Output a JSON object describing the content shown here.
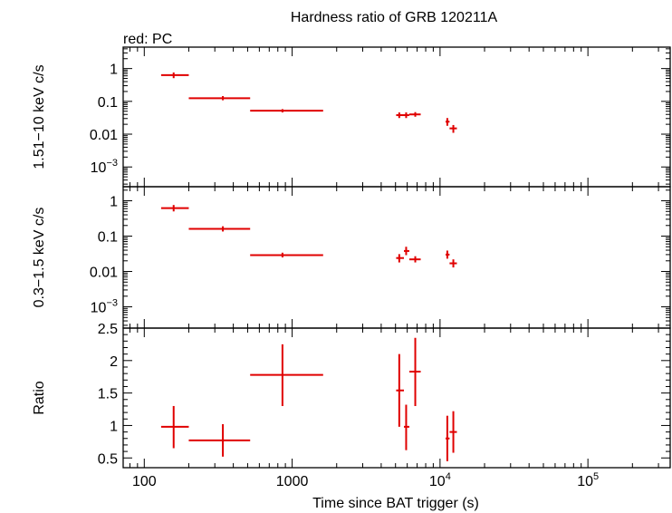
{
  "chart_data": {
    "type": "scatter",
    "title": "Hardness ratio of GRB 120211A",
    "subtitle": "red: PC",
    "xlabel": "Time since BAT trigger (s)",
    "xscale": "log",
    "xlim": [
      72,
      360000
    ],
    "x_ticks": [
      {
        "value": 100,
        "label": "100"
      },
      {
        "value": 1000,
        "label": "1000"
      },
      {
        "value": 10000,
        "label": "10",
        "exp": "4"
      },
      {
        "value": 100000,
        "label": "10",
        "exp": "5"
      }
    ],
    "series_color": "#e00000",
    "panels": [
      {
        "ylabel": "1.51−10 keV c/s",
        "yscale": "log",
        "ylim": [
          0.00025,
          4.5
        ],
        "y_ticks": [
          {
            "value": 1,
            "label": "1"
          },
          {
            "value": 0.1,
            "label": "0.1"
          },
          {
            "value": 0.01,
            "label": "0.01"
          },
          {
            "value": 0.001,
            "label": "10",
            "exp": "−3"
          }
        ],
        "points": [
          {
            "x": 158,
            "xlo": 130,
            "xhi": 200,
            "y": 0.63,
            "ylo": 0.51,
            "yhi": 0.76
          },
          {
            "x": 340,
            "xlo": 200,
            "xhi": 520,
            "y": 0.125,
            "ylo": 0.108,
            "yhi": 0.145
          },
          {
            "x": 860,
            "xlo": 520,
            "xhi": 1620,
            "y": 0.052,
            "ylo": 0.046,
            "yhi": 0.058
          },
          {
            "x": 5300,
            "xlo": 5050,
            "xhi": 5700,
            "y": 0.038,
            "ylo": 0.031,
            "yhi": 0.046
          },
          {
            "x": 5900,
            "xlo": 5700,
            "xhi": 6200,
            "y": 0.038,
            "ylo": 0.031,
            "yhi": 0.046
          },
          {
            "x": 6800,
            "xlo": 6200,
            "xhi": 7400,
            "y": 0.04,
            "ylo": 0.034,
            "yhi": 0.047
          },
          {
            "x": 11200,
            "xlo": 10900,
            "xhi": 11600,
            "y": 0.024,
            "ylo": 0.018,
            "yhi": 0.031
          },
          {
            "x": 12300,
            "xlo": 11600,
            "xhi": 13000,
            "y": 0.015,
            "ylo": 0.011,
            "yhi": 0.019
          }
        ]
      },
      {
        "ylabel": "0.3−1.5 keV c/s",
        "yscale": "log",
        "ylim": [
          0.00025,
          2.5
        ],
        "y_ticks": [
          {
            "value": 1,
            "label": "1"
          },
          {
            "value": 0.1,
            "label": "0.1"
          },
          {
            "value": 0.01,
            "label": "0.01"
          },
          {
            "value": 0.001,
            "label": "10",
            "exp": "−3"
          }
        ],
        "points": [
          {
            "x": 158,
            "xlo": 130,
            "xhi": 200,
            "y": 0.62,
            "ylo": 0.5,
            "yhi": 0.76
          },
          {
            "x": 340,
            "xlo": 200,
            "xhi": 520,
            "y": 0.16,
            "ylo": 0.135,
            "yhi": 0.19
          },
          {
            "x": 860,
            "xlo": 520,
            "xhi": 1620,
            "y": 0.029,
            "ylo": 0.025,
            "yhi": 0.034
          },
          {
            "x": 5300,
            "xlo": 5050,
            "xhi": 5700,
            "y": 0.024,
            "ylo": 0.018,
            "yhi": 0.031
          },
          {
            "x": 5900,
            "xlo": 5700,
            "xhi": 6200,
            "y": 0.038,
            "ylo": 0.029,
            "yhi": 0.05
          },
          {
            "x": 6800,
            "xlo": 6200,
            "xhi": 7400,
            "y": 0.022,
            "ylo": 0.018,
            "yhi": 0.027
          },
          {
            "x": 11200,
            "xlo": 10900,
            "xhi": 11600,
            "y": 0.03,
            "ylo": 0.023,
            "yhi": 0.039
          },
          {
            "x": 12300,
            "xlo": 11600,
            "xhi": 13000,
            "y": 0.017,
            "ylo": 0.013,
            "yhi": 0.022
          }
        ]
      },
      {
        "ylabel": "Ratio",
        "yscale": "linear",
        "ylim": [
          0.35,
          2.5
        ],
        "y_ticks": [
          {
            "value": 2.5,
            "label": "2.5"
          },
          {
            "value": 2,
            "label": "2"
          },
          {
            "value": 1.5,
            "label": "1.5"
          },
          {
            "value": 1,
            "label": "1"
          },
          {
            "value": 0.5,
            "label": "0.5"
          }
        ],
        "points": [
          {
            "x": 158,
            "xlo": 130,
            "xhi": 200,
            "y": 0.98,
            "ylo": 0.65,
            "yhi": 1.3
          },
          {
            "x": 340,
            "xlo": 200,
            "xhi": 520,
            "y": 0.77,
            "ylo": 0.52,
            "yhi": 1.02
          },
          {
            "x": 860,
            "xlo": 520,
            "xhi": 1620,
            "y": 1.78,
            "ylo": 1.3,
            "yhi": 2.25
          },
          {
            "x": 5300,
            "xlo": 5050,
            "xhi": 5700,
            "y": 1.54,
            "ylo": 0.98,
            "yhi": 2.1
          },
          {
            "x": 5900,
            "xlo": 5700,
            "xhi": 6200,
            "y": 0.98,
            "ylo": 0.62,
            "yhi": 1.32
          },
          {
            "x": 6800,
            "xlo": 6200,
            "xhi": 7400,
            "y": 1.83,
            "ylo": 1.3,
            "yhi": 2.35
          },
          {
            "x": 11200,
            "xlo": 10900,
            "xhi": 11600,
            "y": 0.8,
            "ylo": 0.45,
            "yhi": 1.15
          },
          {
            "x": 12300,
            "xlo": 11600,
            "xhi": 13000,
            "y": 0.9,
            "ylo": 0.58,
            "yhi": 1.22
          }
        ]
      }
    ]
  }
}
